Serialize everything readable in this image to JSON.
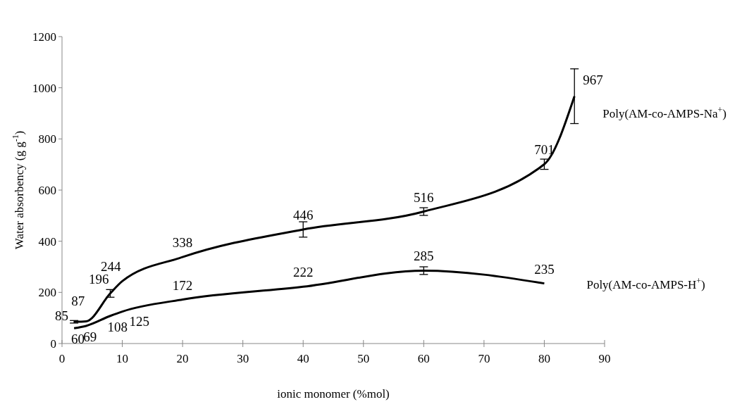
{
  "chart_data": {
    "type": "line",
    "xlabel": "ionic monomer (%mol)",
    "ylabel": "Water absorbency (g g$^{-1}$)",
    "xlim": [
      0,
      90
    ],
    "xticks": [
      0,
      10,
      20,
      30,
      40,
      50,
      60,
      70,
      80,
      90
    ],
    "ylim": [
      0,
      1200
    ],
    "yticks": [
      0,
      200,
      400,
      600,
      800,
      1000,
      1200
    ],
    "grid": false,
    "marker": "none",
    "data_labels": true,
    "line_style": "solid",
    "series": [
      {
        "name": "Poly(AM-co-AMPS-Na$^{+}$)",
        "color": "#000000",
        "x": [
          2,
          4,
          8,
          10,
          20,
          40,
          60,
          80,
          85
        ],
        "values": [
          85,
          87,
          196,
          244,
          338,
          446,
          516,
          701,
          967
        ],
        "errors": [
          5,
          null,
          15,
          null,
          null,
          30,
          15,
          20,
          107
        ]
      },
      {
        "name": "Poly(AM-co-AMPS-H$^{+}$)",
        "color": "#000000",
        "x": [
          2,
          4,
          8,
          10,
          20,
          40,
          60,
          80
        ],
        "values": [
          60,
          69,
          108,
          125,
          172,
          222,
          285,
          235
        ],
        "errors": [
          null,
          null,
          null,
          null,
          null,
          null,
          15,
          null
        ]
      }
    ]
  }
}
